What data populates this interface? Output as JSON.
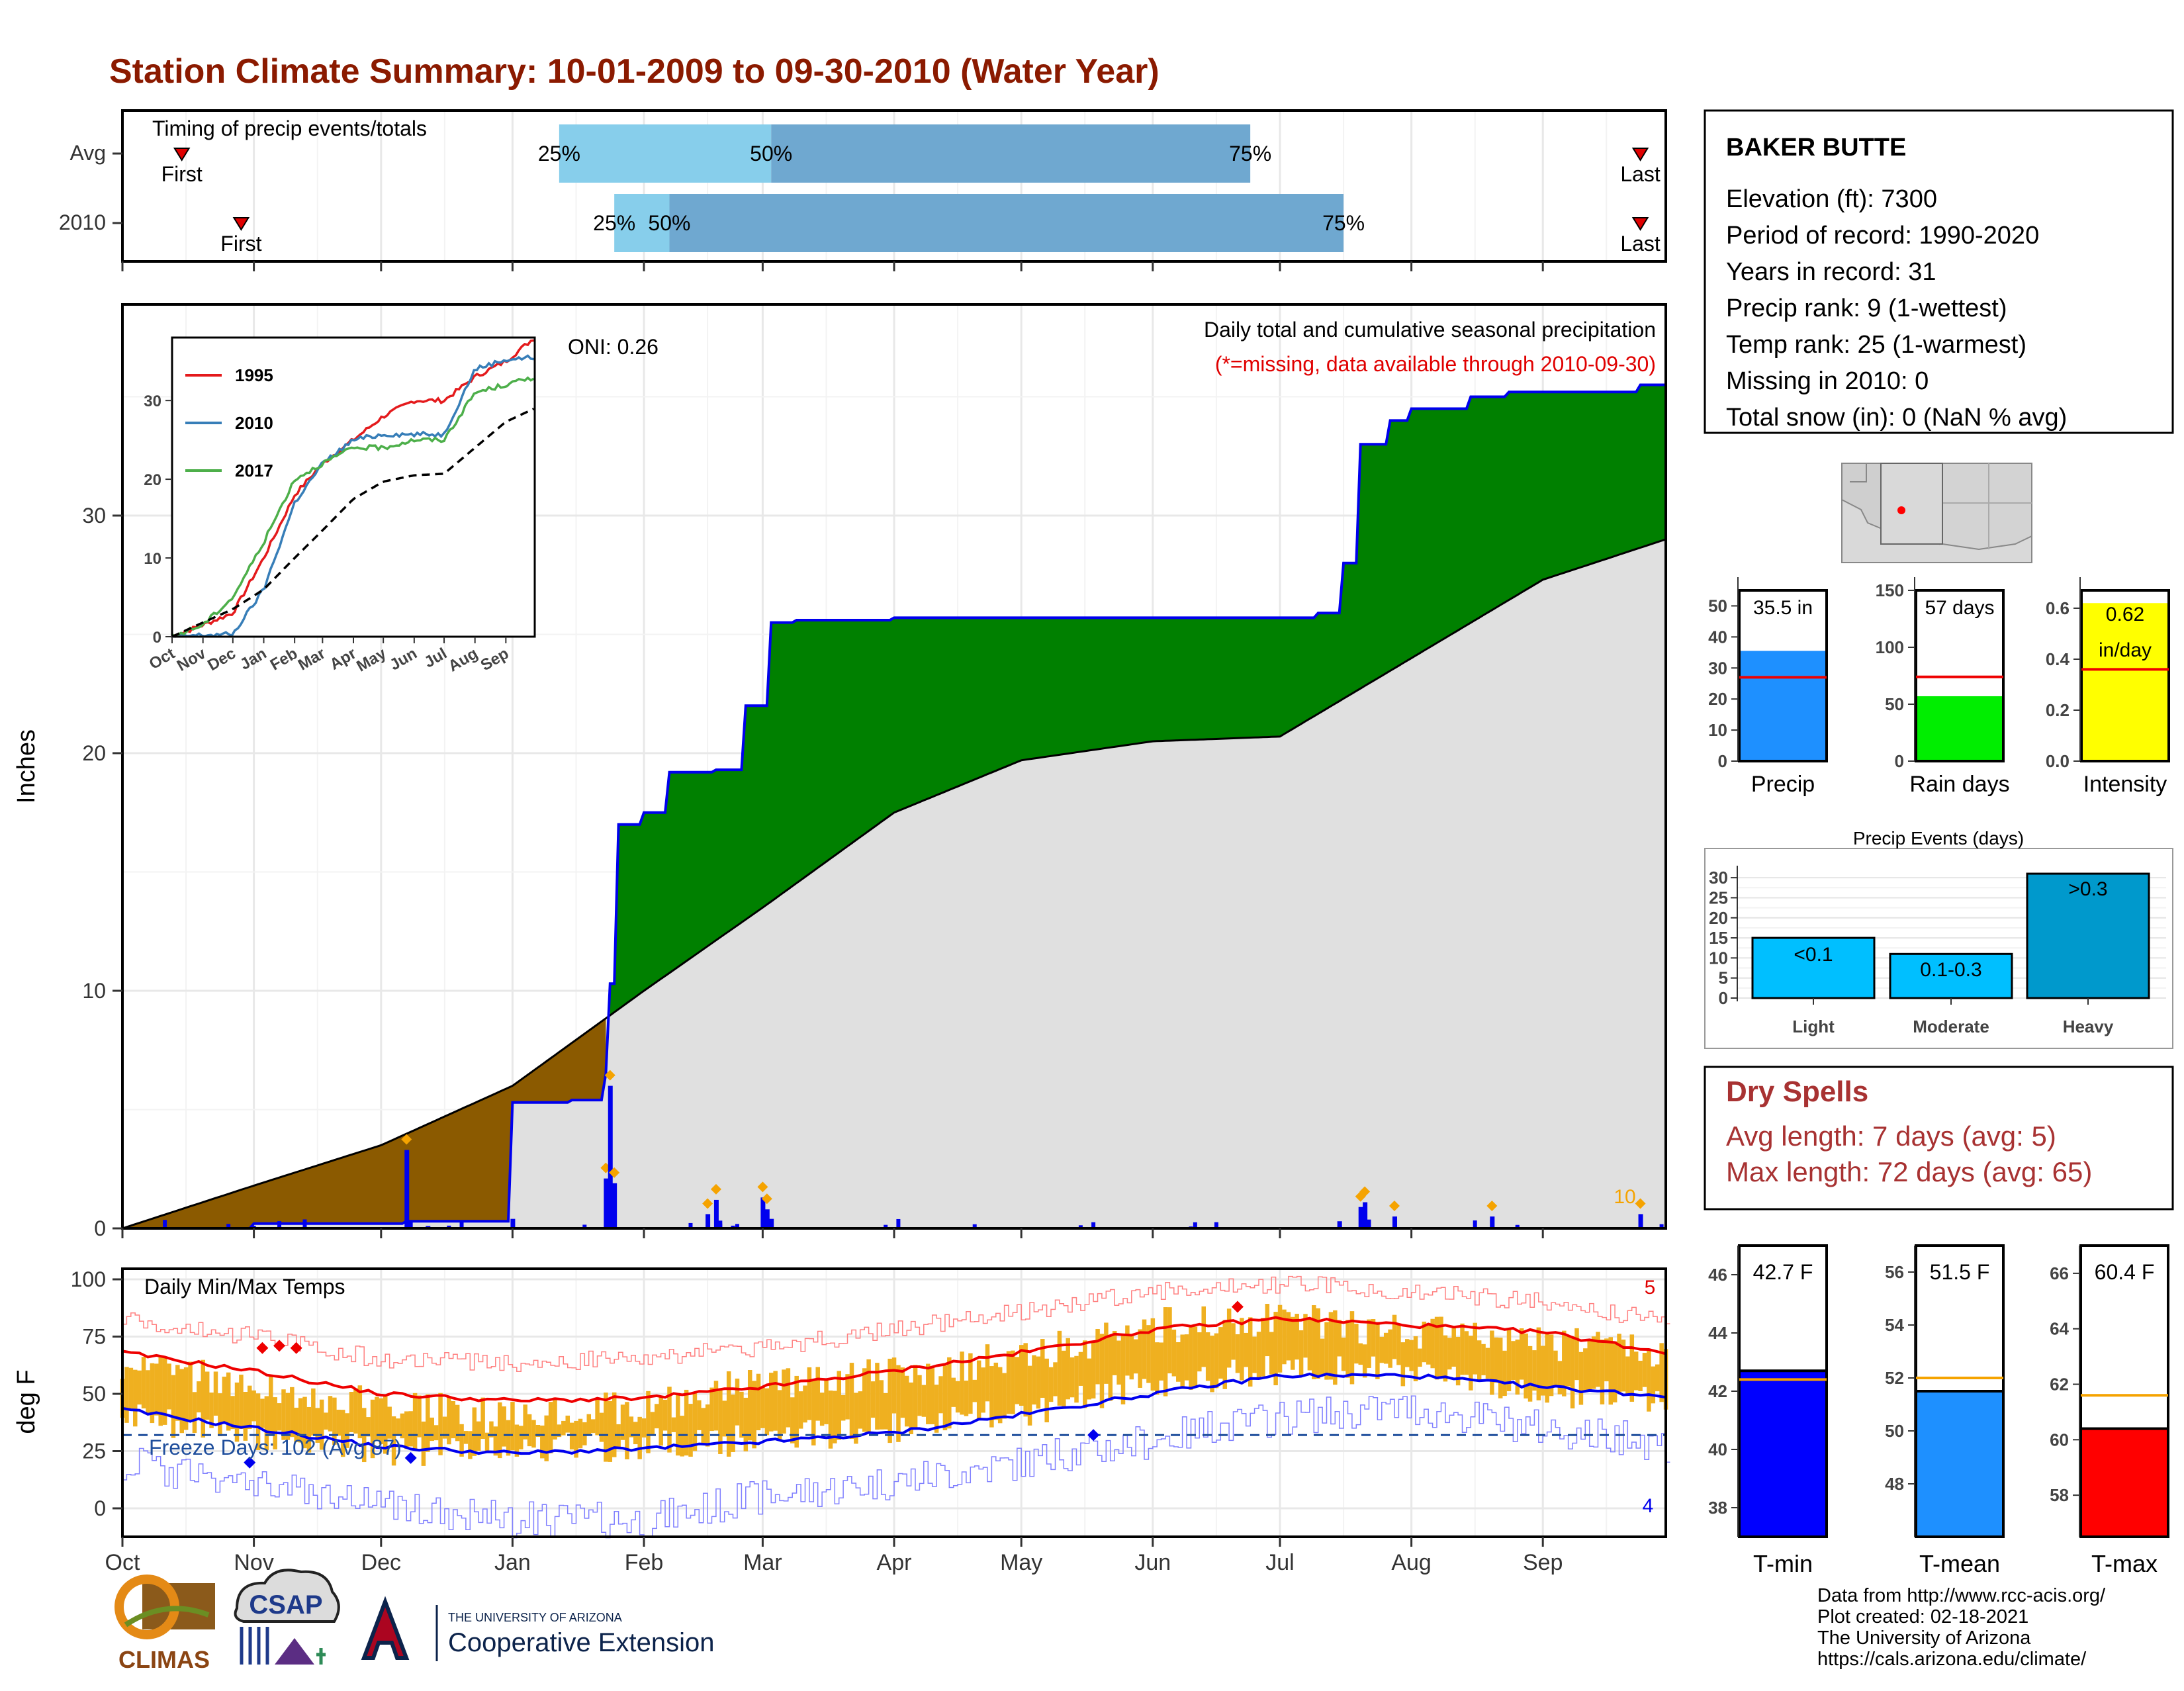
{
  "title": "Station Climate Summary: 10-01-2009 to 09-30-2010 (Water Year)",
  "timing": {
    "title": "Timing of precip events/totals",
    "rows": [
      {
        "label": "Avg",
        "first_label": "First",
        "last_label": "Last",
        "first": "Oct 15",
        "p25": "Jan 12",
        "p50": "Mar 3",
        "p75": "Jun 24",
        "last": "Sep 24"
      },
      {
        "label": "2010",
        "first_label": "First",
        "last_label": "Last",
        "first": "Oct 29",
        "p25": "Jan 25",
        "p50": "Feb 7",
        "p75": "Jul 16",
        "last": "Sep 24"
      }
    ],
    "pct_labels": [
      "25%",
      "50%",
      "75%"
    ]
  },
  "station": {
    "name": "BAKER BUTTE",
    "lines": [
      "Elevation (ft): 7300",
      "Period of record: 1990-2020",
      "Years in record: 31",
      "Precip rank: 9 (1-wettest)",
      "Temp rank: 25 (1-warmest)",
      "Missing in 2010: 0",
      "Total snow (in): 0 (NaN % avg)"
    ]
  },
  "precip_panel": {
    "ylabel": "Inches",
    "yticks": [
      "0",
      "10",
      "20",
      "30"
    ],
    "note": "Daily total and cumulative seasonal precipitation",
    "note_missing": "(*=missing, data available through 2010-09-30)",
    "oni": "ONI: 0.26",
    "top_count": "10"
  },
  "inset": {
    "series": [
      "1995",
      "2010",
      "2017"
    ],
    "colors": [
      "#e41a1c",
      "#377eb8",
      "#4daf4a"
    ],
    "yticks": [
      "0",
      "10",
      "20",
      "30"
    ],
    "xticks": [
      "Oct",
      "Nov",
      "Dec",
      "Jan",
      "Feb",
      "Mar",
      "Apr",
      "May",
      "Jun",
      "Jul",
      "Aug",
      "Sep"
    ]
  },
  "temp_panel": {
    "ylabel": "deg F",
    "yticks": [
      "0",
      "25",
      "50",
      "75",
      "100"
    ],
    "note": "Daily Min/Max Temps",
    "freeze": "Freeze Days: 102 (Avg 87)",
    "count_max": "5",
    "count_min": "4"
  },
  "months": [
    "Oct",
    "Nov",
    "Dec",
    "Jan",
    "Feb",
    "Mar",
    "Apr",
    "May",
    "Jun",
    "Jul",
    "Aug",
    "Sep"
  ],
  "bars": {
    "precip": {
      "label": "Precip",
      "value_text": "35.5 in",
      "yticks": [
        "0",
        "10",
        "20",
        "30",
        "40",
        "50"
      ]
    },
    "rain_days": {
      "label": "Rain days",
      "value_text": "57 days",
      "yticks": [
        "0",
        "50",
        "100",
        "150"
      ]
    },
    "intensity": {
      "label": "Intensity",
      "value_text_1": "0.62",
      "value_text_2": "in/day",
      "yticks": [
        "0.0",
        "0.2",
        "0.4",
        "0.6"
      ]
    }
  },
  "events": {
    "title": "Precip Events (days)",
    "yticks": [
      "0",
      "5",
      "10",
      "15",
      "20",
      "25",
      "30"
    ],
    "categories": [
      "Light",
      "Moderate",
      "Heavy"
    ],
    "bar_labels": [
      "<0.1",
      "0.1-0.3",
      ">0.3"
    ]
  },
  "dry_spells": {
    "title": "Dry Spells",
    "avg": "Avg length: 7 days (avg: 5)",
    "max": "Max length: 72 days (avg: 65)"
  },
  "temp_bars": {
    "tmin": {
      "label": "T-min",
      "value_text": "42.7 F",
      "yticks": [
        "38",
        "40",
        "42",
        "44",
        "46"
      ]
    },
    "tmean": {
      "label": "T-mean",
      "value_text": "51.5 F",
      "yticks": [
        "48",
        "50",
        "52",
        "54",
        "56"
      ]
    },
    "tmax": {
      "label": "T-max",
      "value_text": "60.4 F",
      "yticks": [
        "58",
        "60",
        "62",
        "64",
        "66"
      ]
    }
  },
  "footer": {
    "lines": [
      "Data from http://www.rcc-acis.org/",
      "Plot created: 02-18-2021",
      "The University of Arizona",
      "https://cals.arizona.edu/climate/"
    ],
    "climas": "CLIMAS",
    "csap": "CSAP",
    "ua_small": "THE UNIVERSITY OF ARIZONA",
    "ua_big": "Cooperative Extension"
  },
  "chart_data": [
    {
      "type": "area",
      "title": "Daily total and cumulative seasonal precipitation",
      "ylabel": "Inches",
      "ylim": [
        0,
        39
      ],
      "series": [
        {
          "name": "2010",
          "x": [
            "Oct 1",
            "Nov 1",
            "Dec 7",
            "Jan 1",
            "Jan 15",
            "Jan 23",
            "Jan 24",
            "Jan 26",
            "Feb 1",
            "Feb 7",
            "Feb 18",
            "Feb 25",
            "Mar 3",
            "Mar 9",
            "Mar 20",
            "Apr 1",
            "May 1",
            "Jun 1",
            "Jul 1",
            "Jul 10",
            "Jul 16",
            "Jul 20",
            "Jul 27",
            "Aug 1",
            "Aug 15",
            "Aug 24",
            "Sep 1",
            "Sep 24",
            "Sep 30"
          ],
          "values": [
            0,
            0.2,
            0.3,
            5.3,
            5.4,
            6.5,
            10.3,
            17.0,
            17.5,
            19.2,
            19.3,
            22.0,
            25.5,
            25.6,
            25.6,
            25.7,
            25.7,
            25.7,
            25.7,
            25.9,
            28.0,
            33.0,
            34.0,
            34.5,
            35.0,
            35.2,
            35.2,
            35.5,
            35.5
          ]
        },
        {
          "name": "Avg",
          "x": [
            "Oct 1",
            "Nov 1",
            "Dec 1",
            "Jan 1",
            "Feb 1",
            "Mar 1",
            "Apr 1",
            "May 1",
            "Jun 1",
            "Jul 1",
            "Aug 1",
            "Sep 1",
            "Sep 30"
          ],
          "values": [
            0,
            1.8,
            3.5,
            6.0,
            10.0,
            13.5,
            17.5,
            19.7,
            20.5,
            20.7,
            24.0,
            27.3,
            29.0
          ]
        }
      ],
      "daily_precip": {
        "x": [
          "Dec 7",
          "Dec 12",
          "Jan 1",
          "Jan 23",
          "Jan 24",
          "Jan 25",
          "Feb 16",
          "Feb 18",
          "Mar 1",
          "Mar 2",
          "Mar 3",
          "Jul 15",
          "Jul 20",
          "Jul 21",
          "Jul 28",
          "Aug 20",
          "Sep 24"
        ],
        "values": [
          3.3,
          0.1,
          0.4,
          2.1,
          6.0,
          1.9,
          0.6,
          1.2,
          1.3,
          0.8,
          0.4,
          0.3,
          0.9,
          1.1,
          0.5,
          0.5,
          0.6
        ]
      }
    },
    {
      "type": "line",
      "title": "",
      "series_names": [
        "1995",
        "2010",
        "2017",
        "Avg"
      ],
      "x": [
        "Oct",
        "Nov",
        "Dec",
        "Jan",
        "Feb",
        "Mar",
        "Apr",
        "May",
        "Jun",
        "Jul",
        "Aug",
        "Sep",
        "Sep 30"
      ],
      "series": [
        {
          "name": "1995",
          "values": [
            0,
            1.5,
            3,
            10,
            18,
            22,
            25,
            28,
            30,
            30,
            33,
            35,
            38
          ]
        },
        {
          "name": "2010",
          "values": [
            0,
            0.2,
            0.3,
            6,
            17,
            22,
            25,
            25.7,
            25.7,
            25.7,
            34,
            35.2,
            35.5
          ]
        },
        {
          "name": "2017",
          "values": [
            0,
            1.5,
            5,
            12,
            20,
            22,
            24,
            24,
            25,
            25,
            31,
            32,
            33
          ]
        },
        {
          "name": "Avg",
          "values": [
            0,
            1.8,
            3.5,
            6,
            10,
            13.5,
            17.5,
            19.7,
            20.5,
            20.7,
            24,
            27.3,
            29
          ]
        }
      ],
      "ylim": [
        0,
        38
      ]
    },
    {
      "type": "line",
      "title": "Daily Min/Max Temps",
      "ylabel": "deg F",
      "ylim": [
        -10,
        102
      ],
      "x": [
        "Oct",
        "Nov",
        "Dec",
        "Jan",
        "Feb",
        "Mar",
        "Apr",
        "May",
        "Jun",
        "Jul",
        "Aug",
        "Sep",
        "Sep 30"
      ],
      "series": [
        {
          "name": "Avg max",
          "values": [
            68,
            60,
            50,
            47,
            48,
            53,
            60,
            68,
            78,
            83,
            80,
            77,
            68
          ]
        },
        {
          "name": "Avg min",
          "values": [
            43,
            35,
            27,
            24,
            26,
            29,
            33,
            41,
            50,
            58,
            58,
            53,
            49
          ]
        },
        {
          "name": "Record max",
          "values": [
            82,
            75,
            65,
            63,
            66,
            70,
            78,
            86,
            95,
            98,
            95,
            90,
            82
          ]
        },
        {
          "name": "Record min",
          "values": [
            20,
            10,
            0,
            -5,
            -5,
            5,
            12,
            20,
            30,
            40,
            44,
            35,
            28
          ]
        },
        {
          "name": "Daily max",
          "values": [
            62,
            55,
            45,
            40,
            45,
            55,
            58,
            66,
            80,
            82,
            78,
            72,
            68
          ]
        },
        {
          "name": "Daily min",
          "values": [
            40,
            32,
            25,
            25,
            28,
            30,
            35,
            42,
            55,
            60,
            60,
            52,
            46
          ]
        }
      ],
      "freeze_line": 32
    },
    {
      "type": "bar",
      "categories": [
        "Precip"
      ],
      "values": [
        35.5
      ],
      "avg": [
        27
      ],
      "ylim": [
        0,
        55
      ],
      "ylabel": ""
    },
    {
      "type": "bar",
      "categories": [
        "Rain days"
      ],
      "values": [
        57
      ],
      "avg": [
        74
      ],
      "ylim": [
        0,
        150
      ]
    },
    {
      "type": "bar",
      "categories": [
        "Intensity"
      ],
      "values": [
        0.62
      ],
      "avg": [
        0.36
      ],
      "ylim": [
        0,
        0.67
      ]
    },
    {
      "type": "bar",
      "title": "Precip Events (days)",
      "categories": [
        "Light",
        "Moderate",
        "Heavy"
      ],
      "values": [
        15,
        11,
        31
      ],
      "ylim": [
        0,
        32
      ]
    },
    {
      "type": "bar",
      "categories": [
        "T-min"
      ],
      "values": [
        42.7
      ],
      "avg": [
        42.4
      ],
      "ylim": [
        37,
        47
      ]
    },
    {
      "type": "bar",
      "categories": [
        "T-mean"
      ],
      "values": [
        51.5
      ],
      "avg": [
        52.0
      ],
      "ylim": [
        46,
        57
      ]
    },
    {
      "type": "bar",
      "categories": [
        "T-max"
      ],
      "values": [
        60.4
      ],
      "avg": [
        61.6
      ],
      "ylim": [
        56.5,
        67
      ]
    }
  ]
}
